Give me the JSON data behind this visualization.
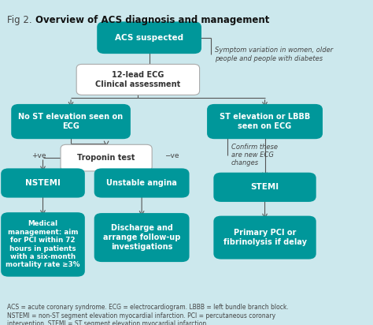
{
  "title_prefix": "Fig 2. ",
  "title_bold": "Overview of ACS diagnosis and management",
  "bg_color": "#cce8ed",
  "teal": "#00979a",
  "white": "#ffffff",
  "footnote": "ACS = acute coronary syndrome. ECG = electrocardiogram. LBBB = left bundle branch block.\nNSTEMI = non-ST segment elevation myocardial infarction. PCI = percutaneous coronary\nintervention. STEMI = ST segment elevation myocardial infarction",
  "line_color": "#555555",
  "troponin_border": "#aaaaaa"
}
